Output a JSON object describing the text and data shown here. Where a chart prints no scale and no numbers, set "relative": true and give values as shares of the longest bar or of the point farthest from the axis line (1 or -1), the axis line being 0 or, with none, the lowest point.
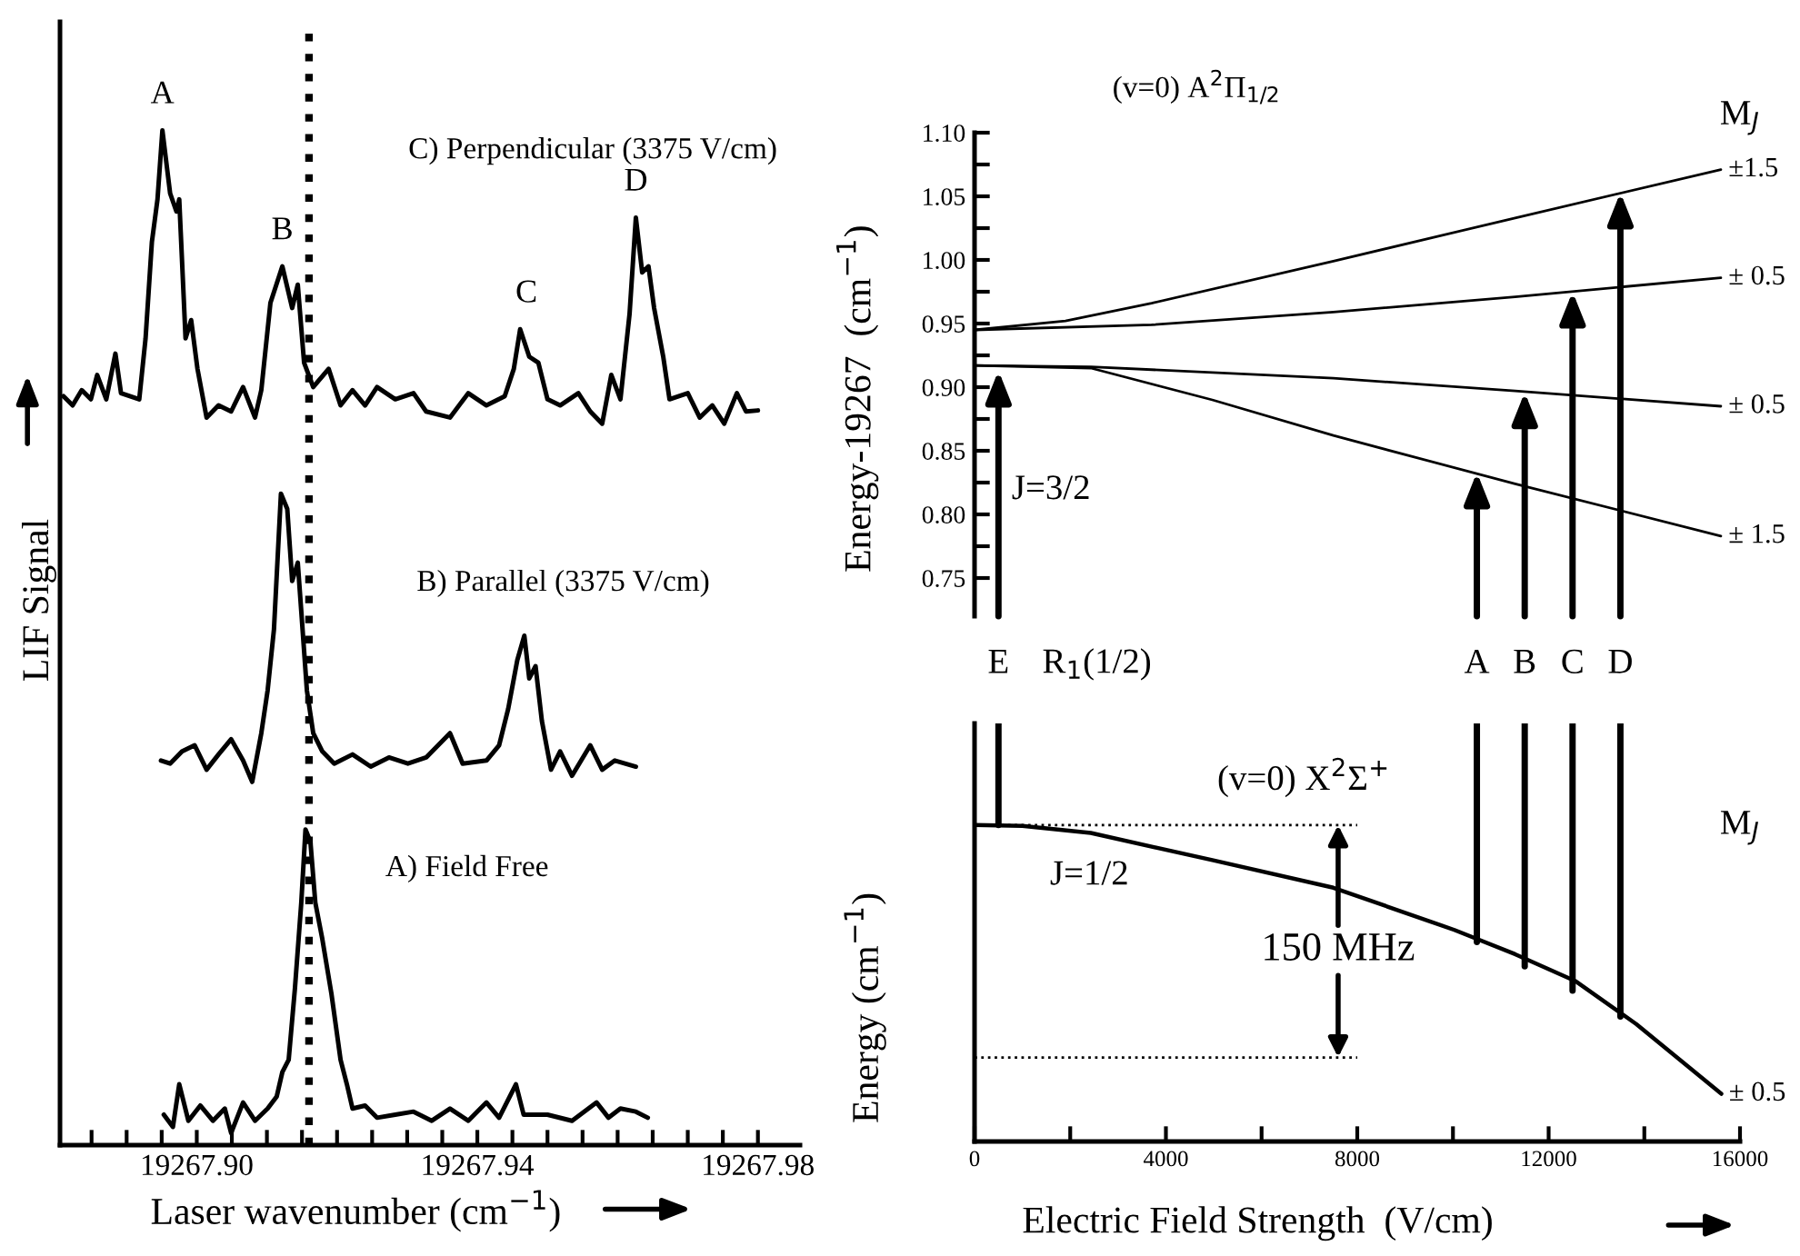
{
  "chart_data": [
    {
      "type": "line",
      "relative": true,
      "tick_labels": "x",
      "xlabel": "Laser wavenumber (cm$^{−1}$)",
      "ylabel": "LIF Signal",
      "xlim": [
        19267.8805,
        19267.986
      ],
      "xticks": [
        {
          "value": 19267.885,
          "label": null
        },
        {
          "value": 19267.89,
          "label": null
        },
        {
          "value": 19267.895,
          "label": null
        },
        {
          "value": 19267.9,
          "label": "19267.90"
        },
        {
          "value": 19267.905,
          "label": null
        },
        {
          "value": 19267.91,
          "label": null
        },
        {
          "value": 19267.915,
          "label": null
        },
        {
          "value": 19267.92,
          "label": null
        },
        {
          "value": 19267.925,
          "label": null
        },
        {
          "value": 19267.93,
          "label": null
        },
        {
          "value": 19267.935,
          "label": null
        },
        {
          "value": 19267.94,
          "label": "19267.94"
        },
        {
          "value": 19267.945,
          "label": null
        },
        {
          "value": 19267.95,
          "label": null
        },
        {
          "value": 19267.955,
          "label": null
        },
        {
          "value": 19267.96,
          "label": null
        },
        {
          "value": 19267.965,
          "label": null
        },
        {
          "value": 19267.97,
          "label": null
        },
        {
          "value": 19267.975,
          "label": null
        },
        {
          "value": 19267.98,
          "label": "19267.98"
        }
      ],
      "ref_lines": [
        {
          "axis": "x",
          "value": 19267.916,
          "line_style": "dotted",
          "color": "#000000"
        }
      ],
      "annotations": [
        {
          "text": "A",
          "x": 19267.8951,
          "y": 1.0
        },
        {
          "text": "B",
          "x": 19267.9122,
          "y": 0.866
        },
        {
          "text": "C",
          "x": 19267.947,
          "y": 0.804
        },
        {
          "text": "D",
          "x": 19267.9626,
          "y": 0.914
        }
      ],
      "series": [
        {
          "name": "C) Perpendicular (3375 V/cm)",
          "color": "#000000",
          "x": [
            19267.881,
            19267.8823,
            19267.8836,
            19267.8849,
            19267.8858,
            19267.8871,
            19267.8884,
            19267.8892,
            19267.8918,
            19267.8927,
            19267.8936,
            19267.8944,
            19267.8951,
            19267.8962,
            19267.8971,
            19267.8975,
            19267.8984,
            19267.8992,
            19267.9001,
            19267.9014,
            19267.9031,
            19267.9049,
            19267.9066,
            19267.9083,
            19267.9092,
            19267.9105,
            19267.9122,
            19267.9136,
            19267.9144,
            19267.9153,
            19267.9166,
            19267.9188,
            19267.9205,
            19267.9222,
            19267.924,
            19267.9257,
            19267.9283,
            19267.9309,
            19267.9327,
            19267.9361,
            19267.9387,
            19267.9413,
            19267.9439,
            19267.9452,
            19267.9461,
            19267.9474,
            19267.9487,
            19267.95,
            19267.9518,
            19267.9544,
            19267.9561,
            19267.9578,
            19267.9591,
            19267.9604,
            19267.9617,
            19267.9626,
            19267.9635,
            19267.9644,
            19267.9652,
            19267.9665,
            19267.9674,
            19267.97,
            19267.9717,
            19267.9735,
            19267.9752,
            19267.977,
            19267.9783,
            19267.98
          ],
          "values": [
            0.738,
            0.729,
            0.744,
            0.735,
            0.759,
            0.735,
            0.78,
            0.741,
            0.735,
            0.795,
            0.89,
            0.932,
            1.0,
            0.938,
            0.92,
            0.932,
            0.795,
            0.813,
            0.765,
            0.717,
            0.729,
            0.723,
            0.747,
            0.717,
            0.744,
            0.83,
            0.866,
            0.825,
            0.848,
            0.771,
            0.747,
            0.765,
            0.729,
            0.744,
            0.729,
            0.747,
            0.735,
            0.741,
            0.723,
            0.717,
            0.741,
            0.729,
            0.738,
            0.765,
            0.804,
            0.777,
            0.771,
            0.735,
            0.729,
            0.741,
            0.723,
            0.711,
            0.759,
            0.735,
            0.819,
            0.914,
            0.86,
            0.866,
            0.825,
            0.777,
            0.735,
            0.741,
            0.717,
            0.729,
            0.711,
            0.741,
            0.723,
            0.724
          ]
        },
        {
          "name": "B) Parallel (3375 V/cm)",
          "color": "#000000",
          "x": [
            19267.8949,
            19267.8962,
            19267.8979,
            19267.8997,
            19267.9014,
            19267.9031,
            19267.9049,
            19267.9066,
            19267.9079,
            19267.9092,
            19267.9101,
            19267.911,
            19267.912,
            19267.9129,
            19267.9136,
            19267.9144,
            19267.9149,
            19267.9157,
            19267.9166,
            19267.9179,
            19267.9196,
            19267.9222,
            19267.9248,
            19267.9274,
            19267.9301,
            19267.9327,
            19267.9361,
            19267.9379,
            19267.9413,
            19267.9431,
            19267.9444,
            19267.9457,
            19267.9467,
            19267.9474,
            19267.9483,
            19267.9492,
            19267.9505,
            19267.9518,
            19267.9535,
            19267.9561,
            19267.9578,
            19267.9596,
            19267.9626
          ],
          "values": [
            0.379,
            0.376,
            0.388,
            0.394,
            0.37,
            0.385,
            0.4,
            0.379,
            0.358,
            0.406,
            0.448,
            0.508,
            0.642,
            0.627,
            0.556,
            0.574,
            0.526,
            0.448,
            0.406,
            0.388,
            0.376,
            0.385,
            0.373,
            0.382,
            0.376,
            0.382,
            0.406,
            0.376,
            0.379,
            0.394,
            0.43,
            0.478,
            0.502,
            0.46,
            0.472,
            0.418,
            0.37,
            0.388,
            0.364,
            0.394,
            0.37,
            0.379,
            0.373
          ]
        },
        {
          "name": "A) Field Free",
          "color": "#000000",
          "x": [
            19267.8953,
            19267.8966,
            19267.8975,
            19267.8988,
            19267.9005,
            19267.9023,
            19267.904,
            19267.9049,
            19267.9066,
            19267.9083,
            19267.9101,
            19267.9114,
            19267.9122,
            19267.9131,
            19267.914,
            19267.9149,
            19267.9155,
            19267.9162,
            19267.9169,
            19267.9179,
            19267.9192,
            19267.9205,
            19267.9214,
            19267.9222,
            19267.924,
            19267.9257,
            19267.9283,
            19267.9309,
            19267.9335,
            19267.9361,
            19267.9387,
            19267.9413,
            19267.9431,
            19267.9455,
            19267.9466,
            19267.95,
            19267.9535,
            19267.957,
            19267.9587,
            19267.9604,
            19267.9626,
            19267.9643
          ],
          "values": [
            0.03,
            0.018,
            0.06,
            0.024,
            0.039,
            0.024,
            0.036,
            0.012,
            0.042,
            0.024,
            0.036,
            0.048,
            0.072,
            0.084,
            0.155,
            0.239,
            0.311,
            0.299,
            0.239,
            0.203,
            0.149,
            0.084,
            0.06,
            0.036,
            0.039,
            0.027,
            0.03,
            0.033,
            0.024,
            0.036,
            0.024,
            0.042,
            0.027,
            0.06,
            0.03,
            0.03,
            0.024,
            0.042,
            0.027,
            0.036,
            0.033,
            0.027
          ]
        }
      ]
    },
    {
      "type": "line",
      "tick_labels": "y",
      "title": "(v=0) A$^{2}$Π$_{1/2}$",
      "ylabel": "Energy-19267  (cm$^{−1}$)",
      "xlim": [
        0,
        16000
      ],
      "ylim": [
        0.72,
        1.1
      ],
      "yticks": [
        0.75,
        {
          "value": 0.775,
          "label": null
        },
        {
          "value": 0.8,
          "label": "0.80"
        },
        {
          "value": 0.825,
          "label": null
        },
        0.85,
        {
          "value": 0.875,
          "label": null
        },
        {
          "value": 0.9,
          "label": "0.90"
        },
        {
          "value": 0.925,
          "label": null
        },
        0.95,
        {
          "value": 0.975,
          "label": null
        },
        {
          "value": 1.0,
          "label": "1.00"
        },
        {
          "value": 1.025,
          "label": null
        },
        1.05,
        {
          "value": 1.075,
          "label": null
        },
        {
          "value": 1.1,
          "label": "1.10"
        }
      ],
      "annotations": [
        "J=3/2",
        "M$_{J}$",
        "R$_{1}$(1/2)",
        {
          "text": "E",
          "x": 500,
          "y": 0.913
        },
        {
          "text": "A",
          "x": 10500,
          "y": 0.833
        },
        {
          "text": "B",
          "x": 11500,
          "y": 0.896
        },
        {
          "text": "C",
          "x": 12500,
          "y": 0.975
        },
        {
          "text": "D",
          "x": 13500,
          "y": 1.053
        }
      ],
      "series": [
        {
          "name": "±1.5",
          "color": "#000000",
          "x": [
            0,
            1900,
            3700,
            7500,
            11300,
            15600
          ],
          "values": [
            0.945,
            0.952,
            0.966,
            0.999,
            1.033,
            1.071
          ]
        },
        {
          "name": "± 0.5",
          "color": "#000000",
          "x": [
            0,
            3700,
            7500,
            11300,
            15600
          ],
          "values": [
            0.945,
            0.949,
            0.959,
            0.971,
            0.986
          ]
        },
        {
          "name": "± 0.5",
          "color": "#000000",
          "x": [
            0,
            2430,
            7500,
            11300,
            15600
          ],
          "values": [
            0.917,
            0.916,
            0.907,
            0.897,
            0.885
          ]
        },
        {
          "name": "± 1.5",
          "color": "#000000",
          "x": [
            0,
            2430,
            4970,
            7500,
            11300,
            15600
          ],
          "values": [
            0.917,
            0.915,
            0.89,
            0.862,
            0.824,
            0.783
          ]
        }
      ]
    },
    {
      "type": "line",
      "relative": true,
      "xlabel": "Electric Field Strength  (V/cm)",
      "ylabel": "Energy (cm$^{−1}$)",
      "xlim": [
        0,
        16000
      ],
      "xticks": [
        0,
        {
          "value": 2000,
          "label": null
        },
        4000,
        {
          "value": 6000,
          "label": null
        },
        8000,
        {
          "value": 10000,
          "label": null
        },
        12000,
        {
          "value": 14000,
          "label": null
        },
        16000
      ],
      "annotations": [
        "(v=0) X$^{2}$Σ$^{+}$",
        "J=1/2",
        "M$_{J}$",
        "150 MHz"
      ],
      "series": [
        {
          "name": "± 0.5",
          "color": "#000000",
          "x": [
            0,
            1000,
            2430,
            4970,
            7500,
            10030,
            11300,
            12570,
            13830,
            15610
          ],
          "values": [
            0.757,
            0.755,
            0.738,
            0.673,
            0.607,
            0.506,
            0.448,
            0.383,
            0.281,
            0.114
          ]
        },
        {
          "color": "#000000",
          "x": [
            500,
            500
          ],
          "values": [
            1.0,
            0.757
          ]
        },
        {
          "color": "#000000",
          "x": [
            10500,
            10500
          ],
          "values": [
            1.0,
            0.477
          ]
        },
        {
          "color": "#000000",
          "x": [
            11500,
            11500
          ],
          "values": [
            1.0,
            0.419
          ]
        },
        {
          "color": "#000000",
          "x": [
            12500,
            12500
          ],
          "values": [
            1.0,
            0.361
          ]
        },
        {
          "color": "#000000",
          "x": [
            13500,
            13500
          ],
          "values": [
            1.0,
            0.299
          ]
        },
        {
          "color": "#000000",
          "line_style": "dotted",
          "x": [
            0,
            8000
          ],
          "values": [
            0.757,
            0.757
          ]
        },
        {
          "color": "#000000",
          "line_style": "dotted",
          "x": [
            0,
            8000
          ],
          "values": [
            0.201,
            0.201
          ]
        }
      ]
    }
  ]
}
